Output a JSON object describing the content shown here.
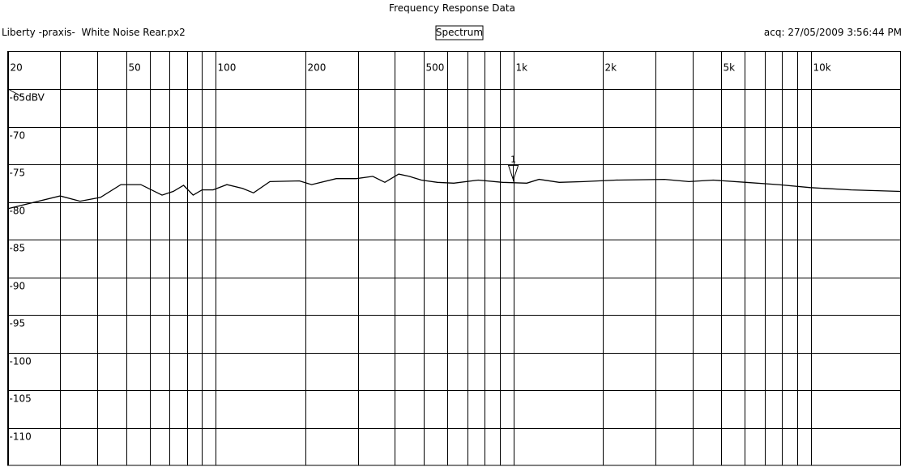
{
  "chart_data": {
    "type": "line",
    "title": "Frequency Response Data",
    "file_label": "Liberty -praxis-  White Noise Rear.px2",
    "mode": "Spectrum",
    "acq": "acq: 27/05/2009 3:56:44 PM",
    "xscale": "log",
    "xlim": [
      20,
      20000
    ],
    "ylim": [
      -115,
      -60
    ],
    "xticks": [
      20,
      50,
      100,
      200,
      500,
      {
        "value": 1000,
        "label": "1k"
      },
      {
        "value": 2000,
        "label": "2k"
      },
      {
        "value": 5000,
        "label": "5k"
      },
      {
        "value": 10000,
        "label": "10k"
      }
    ],
    "xminorticks": [
      30,
      40,
      60,
      70,
      80,
      90,
      300,
      400,
      600,
      700,
      800,
      900,
      3000,
      4000,
      6000,
      7000,
      8000,
      9000
    ],
    "yticks": [
      {
        "value": -65,
        "label": "-65dBV"
      },
      -70,
      -75,
      -80,
      -85,
      -90,
      -95,
      -100,
      -105,
      -110
    ],
    "grid": true,
    "color": "#000000",
    "x": [
      20,
      30,
      35,
      41,
      48,
      56,
      66,
      72,
      78,
      84,
      90,
      98,
      109,
      123,
      134,
      152,
      191,
      210,
      254,
      297,
      337,
      370,
      412,
      447,
      491,
      556,
      631,
      762,
      920,
      1110,
      1220,
      1426,
      1722,
      2213,
      3222,
      3890,
      4698,
      6039,
      7767,
      9970,
      13650,
      20000
    ],
    "values": [
      -80.9,
      -79.2,
      -79.9,
      -79.4,
      -77.7,
      -77.7,
      -79.1,
      -78.6,
      -77.8,
      -79.1,
      -78.4,
      -78.4,
      -77.7,
      -78.2,
      -78.8,
      -77.3,
      -77.2,
      -77.7,
      -76.9,
      -76.9,
      -76.6,
      -77.4,
      -76.3,
      -76.6,
      -77.1,
      -77.4,
      -77.5,
      -77.1,
      -77.4,
      -77.5,
      -77.0,
      -77.4,
      -77.3,
      -77.1,
      -77.0,
      -77.3,
      -77.1,
      -77.4,
      -77.7,
      -78.1,
      -78.4,
      -78.6
    ],
    "marker": {
      "label": "1",
      "x": 1000,
      "y": -77.3
    }
  }
}
